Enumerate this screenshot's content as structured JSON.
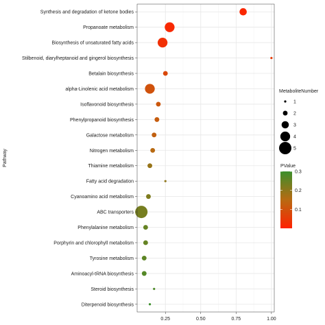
{
  "chart_data": {
    "type": "scatter",
    "ylabel": "Pathway",
    "xlabel": "",
    "xlim": [
      0.05,
      1.02
    ],
    "xticks": [
      0.25,
      0.5,
      0.75,
      1.0
    ],
    "xtick_labels": [
      "0.25",
      "0.50",
      "0.75",
      "1.00"
    ],
    "grid": true,
    "legend_position": "right",
    "categories": [
      "Synthesis and degradation of ketone bodies",
      "Propanoate metabolism",
      "Biosynthesis of unsaturated fatty acids",
      "Stilbenoid, diarylheptanoid and gingerol biosynthesis",
      "Betalain biosynthesis",
      "alpha-Linolenic acid metabolism",
      "Isoflavonoid biosynthesis",
      "Phenylpropanoid biosynthesis",
      "Galactose metabolism",
      "Nitrogen metabolism",
      "Thiamine metabolism",
      "Fatty acid degradation",
      "Cyanoamino acid metabolism",
      "ABC transporters",
      "Phenylalanine metabolism",
      "Porphyrin and chlorophyll metabolism",
      "Tyrosine metabolism",
      "Aminoacyl-tRNA biosynthesis",
      "Steroid biosynthesis",
      "Diterpenoid biosynthesis"
    ],
    "points": [
      {
        "x": 0.8,
        "size": 3,
        "pvalue": 0.01
      },
      {
        "x": 0.28,
        "size": 4,
        "pvalue": 0.015
      },
      {
        "x": 0.23,
        "size": 4,
        "pvalue": 0.03
      },
      {
        "x": 1.0,
        "size": 1,
        "pvalue": 0.05
      },
      {
        "x": 0.25,
        "size": 2,
        "pvalue": 0.08
      },
      {
        "x": 0.14,
        "size": 4,
        "pvalue": 0.1
      },
      {
        "x": 0.2,
        "size": 2,
        "pvalue": 0.11
      },
      {
        "x": 0.19,
        "size": 2,
        "pvalue": 0.12
      },
      {
        "x": 0.17,
        "size": 2,
        "pvalue": 0.13
      },
      {
        "x": 0.16,
        "size": 2,
        "pvalue": 0.15
      },
      {
        "x": 0.14,
        "size": 2,
        "pvalue": 0.19
      },
      {
        "x": 0.25,
        "size": 1,
        "pvalue": 0.2
      },
      {
        "x": 0.13,
        "size": 2,
        "pvalue": 0.22
      },
      {
        "x": 0.08,
        "size": 5,
        "pvalue": 0.23
      },
      {
        "x": 0.11,
        "size": 2,
        "pvalue": 0.25
      },
      {
        "x": 0.11,
        "size": 2,
        "pvalue": 0.25
      },
      {
        "x": 0.1,
        "size": 2,
        "pvalue": 0.26
      },
      {
        "x": 0.1,
        "size": 2,
        "pvalue": 0.27
      },
      {
        "x": 0.17,
        "size": 1,
        "pvalue": 0.28
      },
      {
        "x": 0.14,
        "size": 1,
        "pvalue": 0.3
      }
    ],
    "size_legend": {
      "title": "MetaboliteNumber",
      "values": [
        1,
        2,
        3,
        4,
        5
      ],
      "labels": [
        "1",
        "2",
        "3",
        "4",
        "5"
      ]
    },
    "color_legend": {
      "title": "PValue",
      "range": [
        0,
        0.3
      ],
      "ticks": [
        0.1,
        0.2,
        0.3
      ],
      "tick_labels": [
        "0.1",
        "0.2",
        "0.3"
      ],
      "low_color": "#ff2200",
      "high_color": "#3c8f2c"
    },
    "colors": {
      "panel_background": "#ffffff",
      "grid": "#e6e6e6",
      "border": "#333333"
    }
  }
}
